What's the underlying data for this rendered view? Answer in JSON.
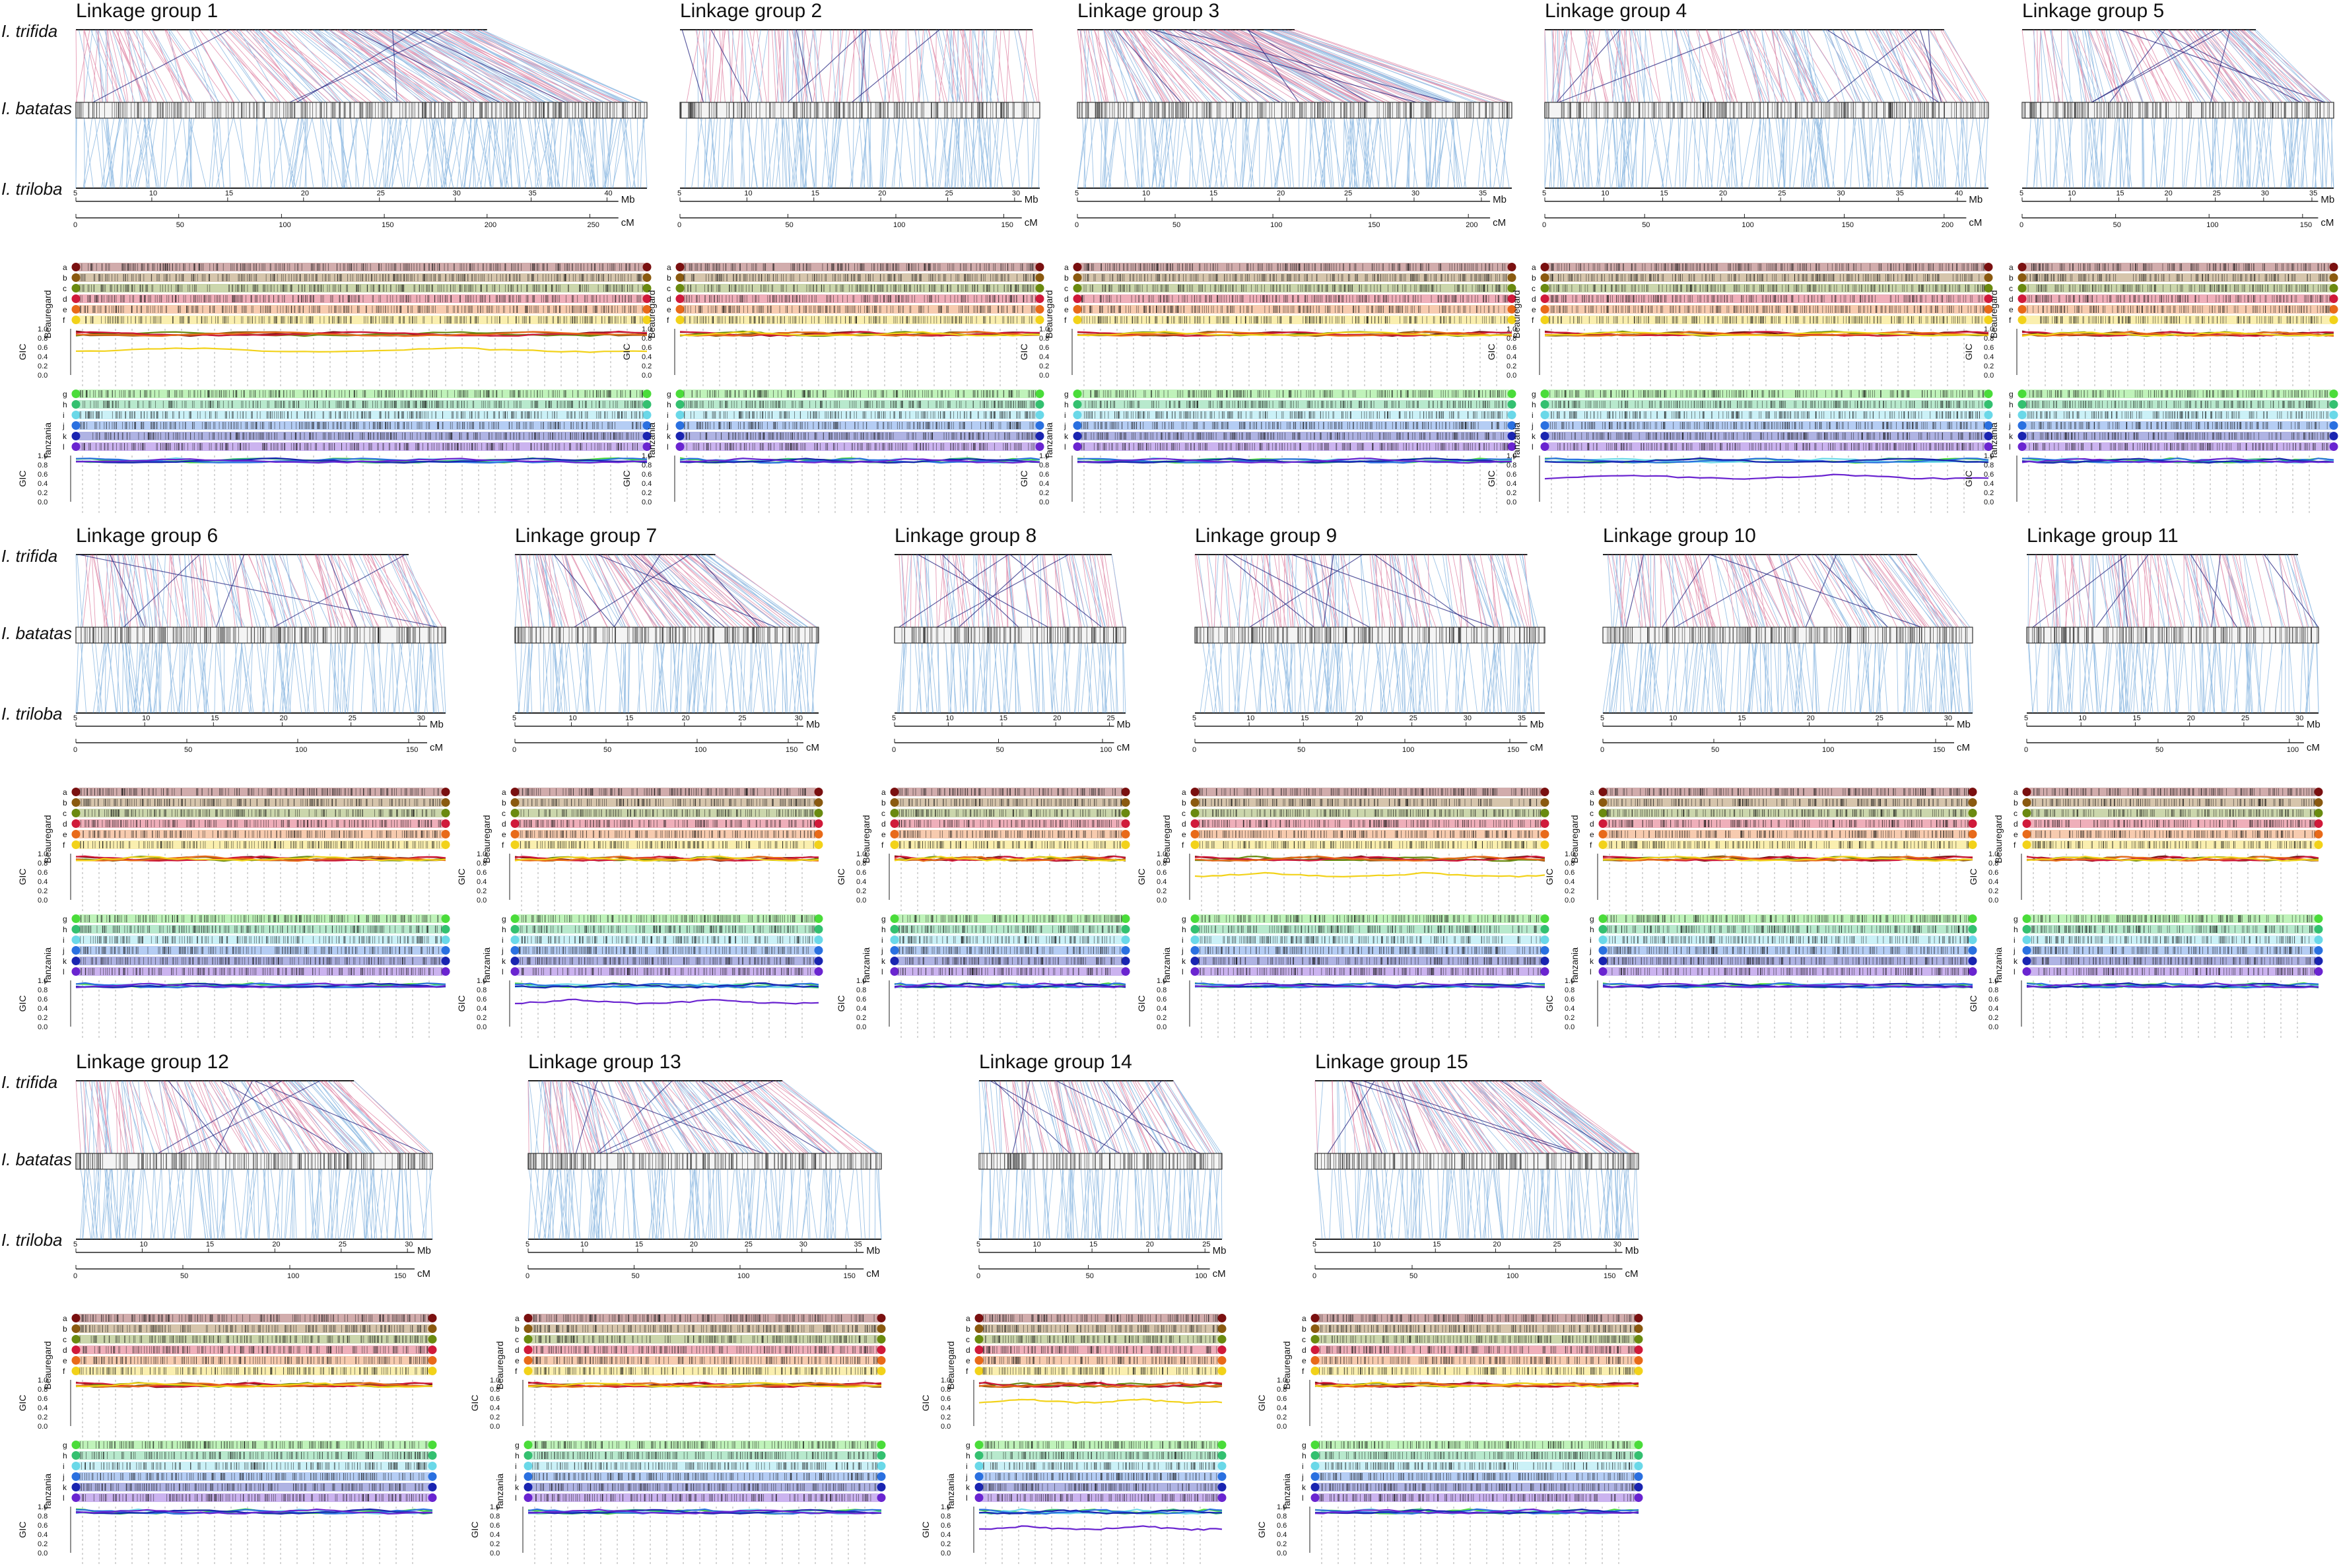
{
  "species": {
    "top": "I. trifida",
    "middle": "I. batatas",
    "bottom": "I. triloba"
  },
  "units": {
    "physical": "Mb",
    "genetic": "cM"
  },
  "populations": {
    "first": "Beauregard",
    "second": "Tanzania"
  },
  "gic_label": "GIC",
  "gic_ticks": [
    "1.0",
    "0.8",
    "0.6",
    "0.4",
    "0.2",
    "0.0"
  ],
  "homologs": {
    "beauregard": [
      "a",
      "b",
      "c",
      "d",
      "e",
      "f"
    ],
    "tanzania": [
      "g",
      "h",
      "i",
      "j",
      "k",
      "l"
    ]
  },
  "colors": {
    "beauregard": [
      "#7a1010",
      "#8a5a10",
      "#6a8a10",
      "#d01a3a",
      "#e86a1a",
      "#f2d21a"
    ],
    "tanzania": [
      "#4adc3a",
      "#34c070",
      "#6ad8e8",
      "#2a70e0",
      "#1a24b0",
      "#6a24d0"
    ],
    "trifida_lines": "#d04a7a",
    "triloba_lines": "#4a90d0",
    "dark_lines": "#1a1a7a"
  },
  "linkage_groups": [
    {
      "id": 1,
      "title": "Linkage group 1",
      "mb_ticks": [
        "5",
        "10",
        "15",
        "20",
        "25",
        "30",
        "35",
        "40"
      ],
      "cm_ticks": [
        "0",
        "50",
        "100",
        "150",
        "200",
        "250"
      ]
    },
    {
      "id": 2,
      "title": "Linkage group 2",
      "mb_ticks": [
        "5",
        "10",
        "15",
        "20",
        "25",
        "30"
      ],
      "cm_ticks": [
        "0",
        "50",
        "100",
        "150"
      ]
    },
    {
      "id": 3,
      "title": "Linkage group 3",
      "mb_ticks": [
        "5",
        "10",
        "15",
        "20",
        "25",
        "30",
        "35"
      ],
      "cm_ticks": [
        "0",
        "50",
        "100",
        "150",
        "200"
      ]
    },
    {
      "id": 4,
      "title": "Linkage group 4",
      "mb_ticks": [
        "5",
        "10",
        "15",
        "20",
        "25",
        "30",
        "35",
        "40"
      ],
      "cm_ticks": [
        "0",
        "50",
        "100",
        "150",
        "200"
      ]
    },
    {
      "id": 5,
      "title": "Linkage group 5",
      "mb_ticks": [
        "5",
        "10",
        "15",
        "20",
        "25",
        "30",
        "35"
      ],
      "cm_ticks": [
        "0",
        "50",
        "100",
        "150"
      ]
    },
    {
      "id": 6,
      "title": "Linkage group 6",
      "mb_ticks": [
        "5",
        "10",
        "15",
        "20",
        "25",
        "30"
      ],
      "cm_ticks": [
        "0",
        "50",
        "100",
        "150"
      ]
    },
    {
      "id": 7,
      "title": "Linkage group 7",
      "mb_ticks": [
        "5",
        "10",
        "15",
        "20",
        "25",
        "30"
      ],
      "cm_ticks": [
        "0",
        "50",
        "100",
        "150"
      ]
    },
    {
      "id": 8,
      "title": "Linkage group 8",
      "mb_ticks": [
        "5",
        "10",
        "15",
        "20",
        "25"
      ],
      "cm_ticks": [
        "0",
        "50",
        "100"
      ]
    },
    {
      "id": 9,
      "title": "Linkage group 9",
      "mb_ticks": [
        "5",
        "10",
        "15",
        "20",
        "25",
        "30",
        "35"
      ],
      "cm_ticks": [
        "0",
        "50",
        "100",
        "150"
      ]
    },
    {
      "id": 10,
      "title": "Linkage group 10",
      "mb_ticks": [
        "5",
        "10",
        "15",
        "20",
        "25",
        "30"
      ],
      "cm_ticks": [
        "0",
        "50",
        "100",
        "150"
      ]
    },
    {
      "id": 11,
      "title": "Linkage group 11",
      "mb_ticks": [
        "5",
        "10",
        "15",
        "20",
        "25",
        "30"
      ],
      "cm_ticks": [
        "0",
        "50",
        "100"
      ]
    },
    {
      "id": 12,
      "title": "Linkage group 12",
      "mb_ticks": [
        "5",
        "10",
        "15",
        "20",
        "25",
        "30"
      ],
      "cm_ticks": [
        "0",
        "50",
        "100",
        "150"
      ]
    },
    {
      "id": 13,
      "title": "Linkage group 13",
      "mb_ticks": [
        "5",
        "10",
        "15",
        "20",
        "25",
        "30",
        "35"
      ],
      "cm_ticks": [
        "0",
        "50",
        "100",
        "150"
      ]
    },
    {
      "id": 14,
      "title": "Linkage group 14",
      "mb_ticks": [
        "5",
        "10",
        "15",
        "20",
        "25"
      ],
      "cm_ticks": [
        "0",
        "50",
        "100"
      ]
    },
    {
      "id": 15,
      "title": "Linkage group 15",
      "mb_ticks": [
        "5",
        "10",
        "15",
        "20",
        "25",
        "30"
      ],
      "cm_ticks": [
        "0",
        "50",
        "100",
        "150"
      ]
    }
  ]
}
